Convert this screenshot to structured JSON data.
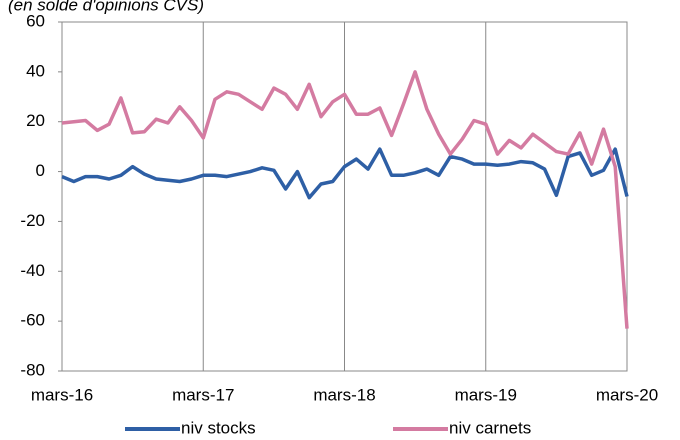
{
  "chart_data": {
    "type": "line",
    "subtitle": "(en solde d'opinions CVS)",
    "categories": [
      "mars-16",
      null,
      null,
      null,
      null,
      null,
      null,
      null,
      null,
      null,
      null,
      null,
      "mars-17",
      null,
      null,
      null,
      null,
      null,
      null,
      null,
      null,
      null,
      null,
      null,
      "mars-18",
      null,
      null,
      null,
      null,
      null,
      null,
      null,
      null,
      null,
      null,
      null,
      "mars-19",
      null,
      null,
      null,
      null,
      null,
      null,
      null,
      null,
      null,
      null,
      null,
      "mars-20"
    ],
    "series": [
      {
        "name": "niv stocks",
        "color": "#2e5fa5",
        "values": [
          -2,
          -4,
          -2,
          -2,
          -3,
          -1.5,
          2,
          -1,
          -3,
          -3.5,
          -4,
          -3,
          -1.5,
          -1.5,
          -2,
          -1,
          0,
          1.5,
          0.5,
          -7,
          0,
          -10.5,
          -5,
          -4,
          2,
          5,
          1,
          9,
          -1.5,
          -1.5,
          -0.5,
          1,
          -1.5,
          6,
          5,
          3,
          3,
          2.5,
          3,
          4,
          3.5,
          1,
          -9.5,
          6,
          7.5,
          -1.5,
          0.5,
          9,
          -10
        ]
      },
      {
        "name": "niv carnets",
        "color": "#d47ba1",
        "values": [
          19.5,
          20,
          20.5,
          16.5,
          19,
          29.5,
          15.5,
          16,
          21,
          19.5,
          26,
          20.5,
          13.5,
          29,
          32,
          31,
          28,
          25,
          33.5,
          31,
          25,
          35,
          22,
          28,
          31,
          23,
          23,
          25.5,
          14.5,
          27,
          40,
          25,
          15,
          7,
          13,
          20.5,
          19,
          7,
          12.5,
          9.5,
          15,
          11.5,
          8,
          7,
          15.5,
          3,
          17,
          2,
          -63
        ]
      }
    ],
    "ylim": [
      -80,
      60
    ],
    "yticks": [
      -80,
      -60,
      -40,
      -20,
      0,
      20,
      40,
      60
    ],
    "legend": "bottom"
  }
}
